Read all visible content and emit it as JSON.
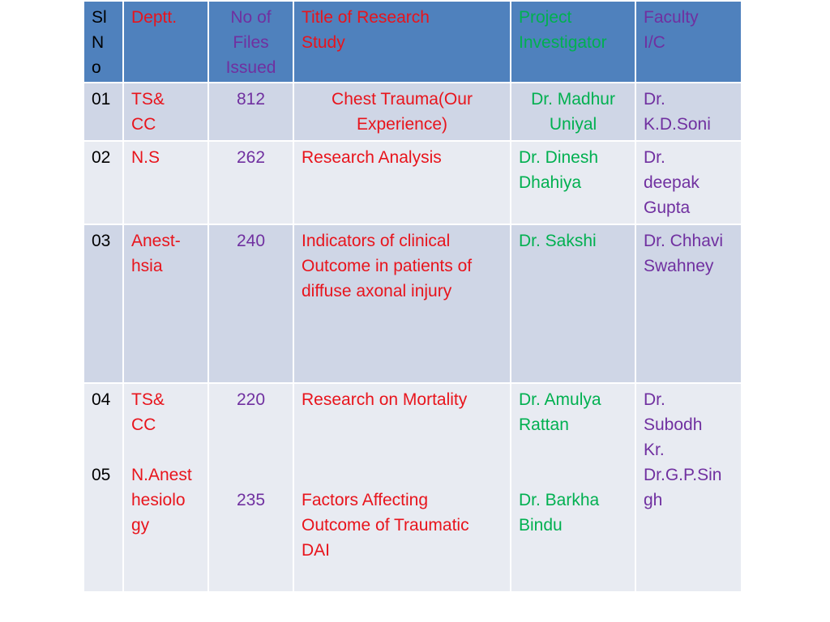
{
  "headers": {
    "sl_no": [
      "Sl",
      "N",
      "o"
    ],
    "dept": [
      "Deptt."
    ],
    "files": [
      "No of",
      "Files",
      "Issued"
    ],
    "title": [
      "Title of  Research",
      "Study"
    ],
    "investigator": [
      "Project",
      "Investigator"
    ],
    "faculty": [
      "Faculty",
      "I/C"
    ]
  },
  "rows": [
    {
      "sl": [
        "01"
      ],
      "dept": [
        "TS&",
        "CC"
      ],
      "files": [
        "812"
      ],
      "title": [
        "Chest Trauma(Our",
        "Experience)"
      ],
      "investigator": [
        "Dr. Madhur",
        "Uniyal"
      ],
      "faculty": [
        "Dr.",
        "K.D.Soni"
      ]
    },
    {
      "sl": [
        "02"
      ],
      "dept": [
        "N.S"
      ],
      "files": [
        "262"
      ],
      "title": [
        "Research Analysis"
      ],
      "investigator": [
        "Dr. Dinesh",
        "Dhahiya"
      ],
      "faculty": [
        "Dr.",
        "deepak",
        "Gupta"
      ]
    },
    {
      "sl": [
        "03"
      ],
      "dept": [
        "Anest-",
        "hsia"
      ],
      "files": [
        "240"
      ],
      "title": [
        "Indicators of clinical",
        "Outcome in patients  of",
        "diffuse axonal injury"
      ],
      "investigator": [
        "Dr. Sakshi"
      ],
      "faculty": [
        "Dr. Chhavi",
        "Swahney"
      ]
    },
    {
      "sl": [
        "04",
        "05"
      ],
      "dept": [
        "TS&",
        "CC",
        "N.Anest",
        "hesiolo",
        "gy"
      ],
      "files": [
        "220",
        "235"
      ],
      "title": [
        "Research on Mortality",
        "Factors Affecting",
        "Outcome of Traumatic",
        "DAI"
      ],
      "investigator": [
        "Dr. Amulya",
        "Rattan",
        "Dr. Barkha",
        "Bindu"
      ],
      "faculty": [
        "Dr.",
        "Subodh",
        "Kr.",
        "Dr.G.P.Sin",
        "gh"
      ]
    }
  ],
  "colors": {
    "header_bg": "#4f81bd",
    "row_dark": "#cfd6e6",
    "row_light": "#e8ebf2",
    "red_text": "#e8141c",
    "purple_text": "#7030a0",
    "green_text": "#00b050"
  }
}
